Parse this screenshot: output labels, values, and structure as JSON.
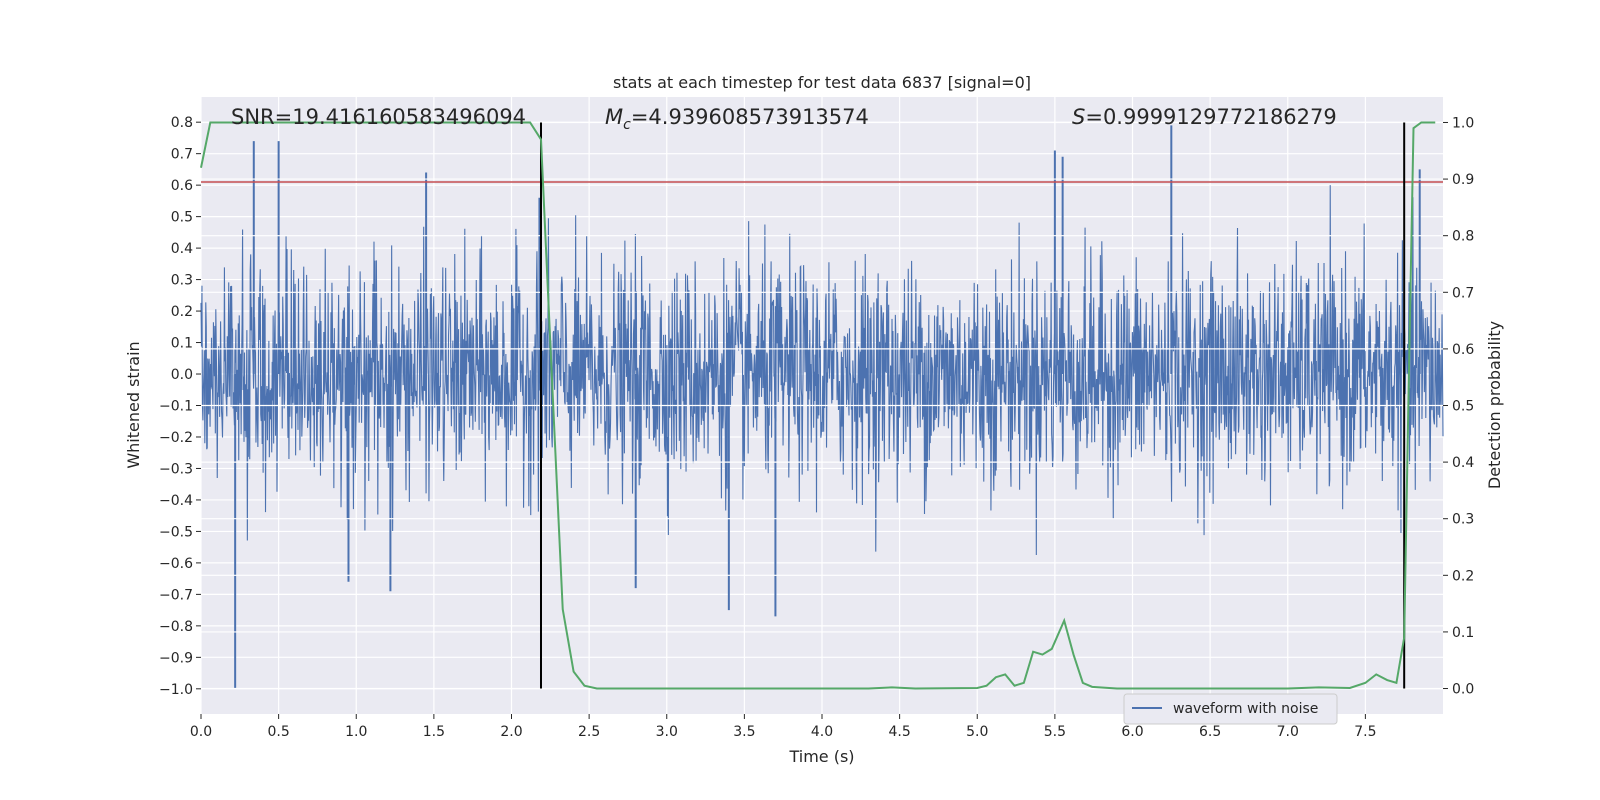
{
  "chart_data": {
    "type": "line",
    "title": "stats at each timestep for test data 6837 [signal=0]",
    "xlabel": "Time (s)",
    "ylabel_left": "Whitened strain",
    "ylabel_right": "Detection probability",
    "xlim": [
      0.0,
      8.0
    ],
    "ylim_left": [
      -1.08,
      0.88
    ],
    "ylim_right": [
      -0.045,
      1.045
    ],
    "x_ticks": [
      "0.0",
      "0.5",
      "1.0",
      "1.5",
      "2.0",
      "2.5",
      "3.0",
      "3.5",
      "4.0",
      "4.5",
      "5.0",
      "5.5",
      "6.0",
      "6.5",
      "7.0",
      "7.5"
    ],
    "y_ticks_left": [
      "0.8",
      "0.7",
      "0.6",
      "0.5",
      "0.4",
      "0.3",
      "0.2",
      "0.1",
      "0.0",
      "−0.1",
      "−0.2",
      "−0.3",
      "−0.4",
      "−0.5",
      "−0.6",
      "−0.7",
      "−0.8",
      "−0.9",
      "−1.0"
    ],
    "y_ticks_right": [
      "1.0",
      "0.9",
      "0.8",
      "0.7",
      "0.6",
      "0.5",
      "0.4",
      "0.3",
      "0.2",
      "0.1",
      "0.0"
    ],
    "grid": true,
    "legend_position": "lower-right",
    "annotations": {
      "snr": "SNR=19.416160583496094",
      "mc_symbol": "M",
      "mc_subscript": "c",
      "mc_value": "=4.939608573913574",
      "s_symbol": "S",
      "s_value": "=0.9999129772186279"
    },
    "threshold_line": {
      "name": "threshold",
      "y_left": 0.61,
      "color": "#c44e52"
    },
    "detection_markers": {
      "name": "detection bounds",
      "x": [
        2.19,
        7.75
      ],
      "color": "#000000"
    },
    "series": [
      {
        "name": "waveform with noise",
        "axis": "left",
        "color": "#4c72b0",
        "dense_noise": true,
        "envelope_std": 0.17,
        "spikes": [
          {
            "x": 0.22,
            "y": -1.0
          },
          {
            "x": 0.34,
            "y": 0.74
          },
          {
            "x": 0.5,
            "y": 0.74
          },
          {
            "x": 0.95,
            "y": -0.66
          },
          {
            "x": 1.22,
            "y": -0.69
          },
          {
            "x": 1.45,
            "y": 0.64
          },
          {
            "x": 2.18,
            "y": 0.56
          },
          {
            "x": 2.8,
            "y": -0.68
          },
          {
            "x": 3.4,
            "y": -0.75
          },
          {
            "x": 3.7,
            "y": -0.77
          },
          {
            "x": 5.5,
            "y": 0.71
          },
          {
            "x": 5.55,
            "y": 0.69
          },
          {
            "x": 6.25,
            "y": 0.79
          },
          {
            "x": 7.85,
            "y": 0.65
          }
        ]
      },
      {
        "name": "detection probability",
        "axis": "right",
        "color": "#55a868",
        "x": [
          0.0,
          0.06,
          0.12,
          0.5,
          1.0,
          1.5,
          2.0,
          2.12,
          2.19,
          2.26,
          2.33,
          2.4,
          2.47,
          2.55,
          2.7,
          3.0,
          3.5,
          4.0,
          4.3,
          4.45,
          4.6,
          5.0,
          5.06,
          5.12,
          5.18,
          5.24,
          5.3,
          5.36,
          5.42,
          5.48,
          5.56,
          5.62,
          5.68,
          5.74,
          5.9,
          6.2,
          6.5,
          7.0,
          7.2,
          7.4,
          7.5,
          7.57,
          7.64,
          7.7,
          7.75,
          7.78,
          7.81,
          7.86,
          7.9,
          7.95
        ],
        "y": [
          0.92,
          1.0,
          1.0,
          1.0,
          1.0,
          1.0,
          1.0,
          1.0,
          0.97,
          0.55,
          0.14,
          0.03,
          0.005,
          0.0,
          0.0,
          0.0,
          0.0,
          0.0,
          0.0,
          0.002,
          0.0,
          0.001,
          0.005,
          0.02,
          0.025,
          0.005,
          0.01,
          0.065,
          0.06,
          0.07,
          0.12,
          0.06,
          0.01,
          0.003,
          0.0,
          0.0,
          0.0,
          0.0,
          0.002,
          0.001,
          0.01,
          0.025,
          0.015,
          0.01,
          0.09,
          0.55,
          0.99,
          1.0,
          1.0,
          1.0
        ]
      }
    ]
  }
}
